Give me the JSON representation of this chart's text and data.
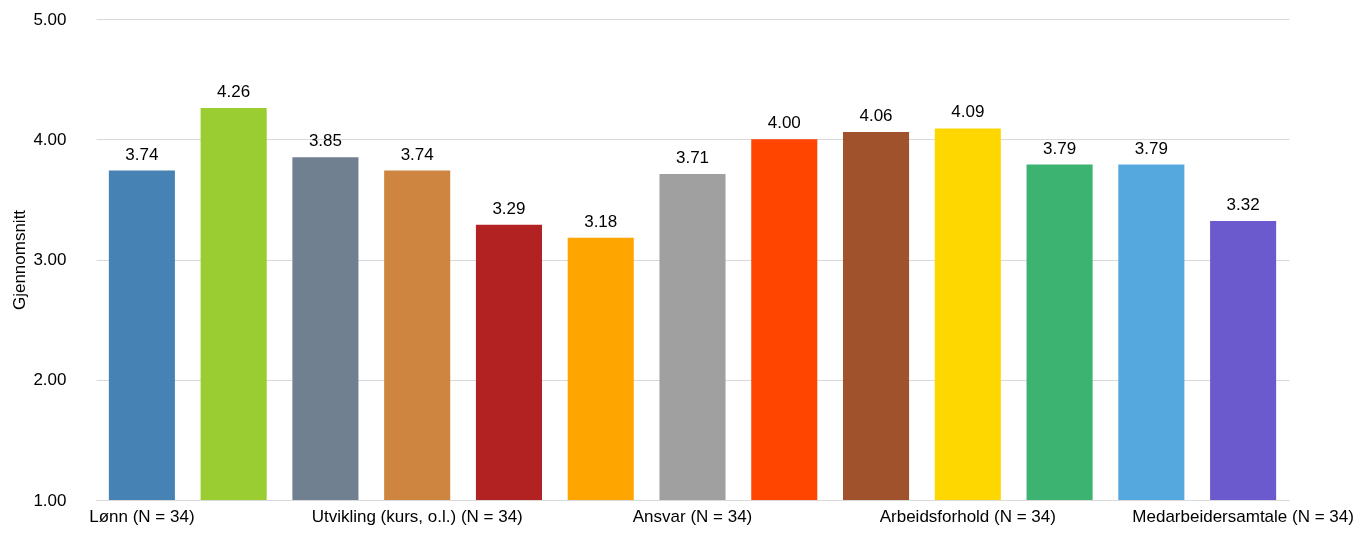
{
  "chart_data": {
    "type": "bar",
    "ylabel": "Gjennomsnitt",
    "categories": [
      "Lønn (N = 34)",
      null,
      null,
      "Utvikling (kurs, o.l.) (N = 34)",
      null,
      null,
      "Ansvar (N = 34)",
      null,
      null,
      "Arbeidsforhold (N = 34)",
      null,
      null,
      "Medarbeidersamtale (N = 34)"
    ],
    "values": [
      3.74,
      4.26,
      3.85,
      3.74,
      3.29,
      3.18,
      3.71,
      4.0,
      4.06,
      4.09,
      3.79,
      3.79,
      3.32
    ],
    "value_labels": [
      "3.74",
      "4.26",
      "3.85",
      "3.74",
      "3.29",
      "3.18",
      "3.71",
      "4.00",
      "4.06",
      "4.09",
      "3.79",
      "3.79",
      "3.32"
    ],
    "colors": [
      "#4682b4",
      "#9acd32",
      "#708090",
      "#cd853f",
      "#b22222",
      "#ffa500",
      "#a0a0a0",
      "#ff4500",
      "#a0522d",
      "#ffd700",
      "#3cb371",
      "#55a8dd",
      "#6a5acd"
    ],
    "ylim": [
      1,
      5
    ],
    "yticks": [
      {
        "value": 1,
        "label": "1.00"
      },
      {
        "value": 2,
        "label": "2.00"
      },
      {
        "value": 3,
        "label": "3.00"
      },
      {
        "value": 4,
        "label": "4.00"
      },
      {
        "value": 5,
        "label": "5.00"
      }
    ],
    "grid": "y",
    "legend": false
  }
}
